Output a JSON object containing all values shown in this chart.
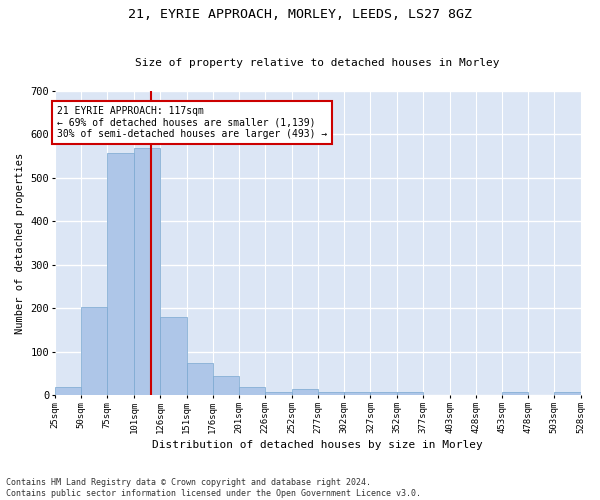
{
  "title1": "21, EYRIE APPROACH, MORLEY, LEEDS, LS27 8GZ",
  "title2": "Size of property relative to detached houses in Morley",
  "xlabel": "Distribution of detached houses by size in Morley",
  "ylabel": "Number of detached properties",
  "annotation_line1": "21 EYRIE APPROACH: 117sqm",
  "annotation_line2": "← 69% of detached houses are smaller (1,139)",
  "annotation_line3": "30% of semi-detached houses are larger (493) →",
  "bin_edges": [
    25,
    50,
    75,
    101,
    126,
    151,
    176,
    201,
    226,
    252,
    277,
    302,
    327,
    352,
    377,
    403,
    428,
    453,
    478,
    503,
    528
  ],
  "bar_heights": [
    20,
    204,
    558,
    570,
    180,
    75,
    45,
    20,
    8,
    14,
    8,
    8,
    8,
    8,
    0,
    0,
    0,
    8,
    0,
    8
  ],
  "bar_color": "#aec6e8",
  "bar_edge_color": "#7aa8d0",
  "vline_color": "#cc0000",
  "vline_x": 117,
  "annotation_box_color": "#cc0000",
  "background_color": "#dce6f5",
  "grid_color": "#ffffff",
  "ylim": [
    0,
    700
  ],
  "yticks": [
    0,
    100,
    200,
    300,
    400,
    500,
    600,
    700
  ],
  "footnote1": "Contains HM Land Registry data © Crown copyright and database right 2024.",
  "footnote2": "Contains public sector information licensed under the Open Government Licence v3.0."
}
